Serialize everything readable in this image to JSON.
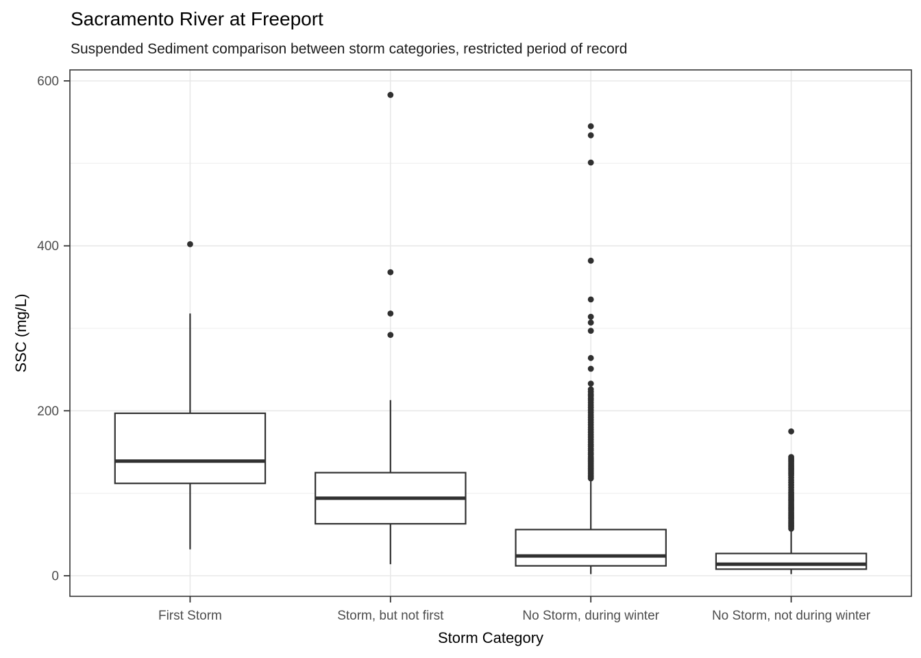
{
  "chart_data": {
    "type": "boxplot",
    "title": "Sacramento River at Freeport",
    "subtitle": "Suspended Sediment comparison between storm categories, restricted period of record",
    "xlabel": "Storm Category",
    "ylabel": "SSC (mg/L)",
    "ylim": [
      -25,
      613
    ],
    "yticks": [
      0,
      200,
      400,
      600
    ],
    "yminor_ticks": [
      100,
      300,
      500
    ],
    "grid": "horizontal major+minor, vertical major at each category; light gray on white panel with black border",
    "legend_position": "none",
    "categories": [
      "First Storm",
      "Storm, but not first",
      "No Storm, during winter",
      "No Storm, not during winter"
    ],
    "series": [
      {
        "category": "First Storm",
        "whisker_low": 32,
        "q1": 112,
        "median": 139,
        "q3": 197,
        "whisker_high": 318,
        "outliers": [
          402
        ]
      },
      {
        "category": "Storm, but not first",
        "whisker_low": 14,
        "q1": 63,
        "median": 94,
        "q3": 125,
        "whisker_high": 213,
        "outliers": [
          583,
          368,
          318,
          292
        ]
      },
      {
        "category": "No Storm, during winter",
        "whisker_low": 2,
        "q1": 12,
        "median": 24,
        "q3": 56,
        "whisker_high": 118,
        "outliers": [
          545,
          534,
          501,
          382,
          335,
          314,
          307,
          297,
          264,
          251,
          233,
          226,
          223,
          220,
          218,
          215,
          213,
          210,
          207,
          204,
          201,
          198,
          195,
          192,
          189,
          186,
          183,
          180,
          177,
          174,
          171,
          168,
          165,
          162,
          159,
          157,
          154,
          152,
          149,
          147,
          144,
          142,
          140,
          138,
          136,
          134,
          132,
          130,
          128,
          126,
          124,
          122,
          120,
          118
        ]
      },
      {
        "category": "No Storm, not during winter",
        "whisker_low": 2,
        "q1": 8,
        "median": 14,
        "q3": 27,
        "whisker_high": 56,
        "outliers": [
          175,
          144,
          142,
          140,
          138,
          136,
          134,
          132,
          130,
          128,
          126,
          124,
          122,
          119,
          116,
          113,
          110,
          107,
          104,
          101,
          99,
          97,
          95,
          93,
          91,
          89,
          87,
          85,
          83,
          81,
          79,
          77,
          75,
          73,
          71,
          69,
          67,
          65,
          63,
          61,
          59,
          57
        ]
      }
    ],
    "colors": {
      "background": "#ffffff",
      "panel_background": "#ffffff",
      "panel_border": "#333333",
      "grid_major": "#e8e8e8",
      "grid_minor": "#f3f3f3",
      "box_stroke": "#303030",
      "box_fill": "#ffffff",
      "median": "#303030",
      "whisker": "#303030",
      "outlier": "#303030",
      "tick_mark": "#333333",
      "tick_label": "#4d4d4d",
      "title_text": "#000000"
    }
  }
}
